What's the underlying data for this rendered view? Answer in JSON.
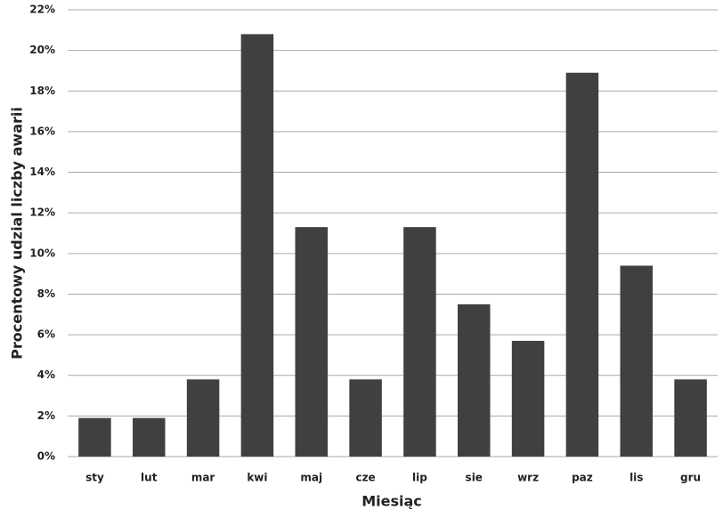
{
  "chart_data": {
    "type": "bar",
    "x_label": "Miesiąc",
    "y_label": "Procentowy udzial liczby awarii",
    "categories": [
      "sty",
      "lut",
      "mar",
      "kwi",
      "maj",
      "cze",
      "lip",
      "sie",
      "wrz",
      "paz",
      "lis",
      "gru"
    ],
    "values": [
      1.9,
      1.9,
      3.8,
      20.8,
      11.3,
      3.8,
      11.3,
      7.5,
      5.7,
      18.9,
      9.4,
      3.8
    ],
    "color": "#404040",
    "ylim": [
      0,
      22
    ],
    "yticks": [
      {
        "value": 0,
        "label": "0%"
      },
      {
        "value": 2,
        "label": "2%"
      },
      {
        "value": 4,
        "label": "4%"
      },
      {
        "value": 6,
        "label": "6%"
      },
      {
        "value": 8,
        "label": "8%"
      },
      {
        "value": 10,
        "label": "10%"
      },
      {
        "value": 12,
        "label": "12%"
      },
      {
        "value": 14,
        "label": "14%"
      },
      {
        "value": 16,
        "label": "16%"
      },
      {
        "value": 18,
        "label": "18%"
      },
      {
        "value": 20,
        "label": "20%"
      },
      {
        "value": 22,
        "label": "22%"
      }
    ],
    "grid": true
  }
}
